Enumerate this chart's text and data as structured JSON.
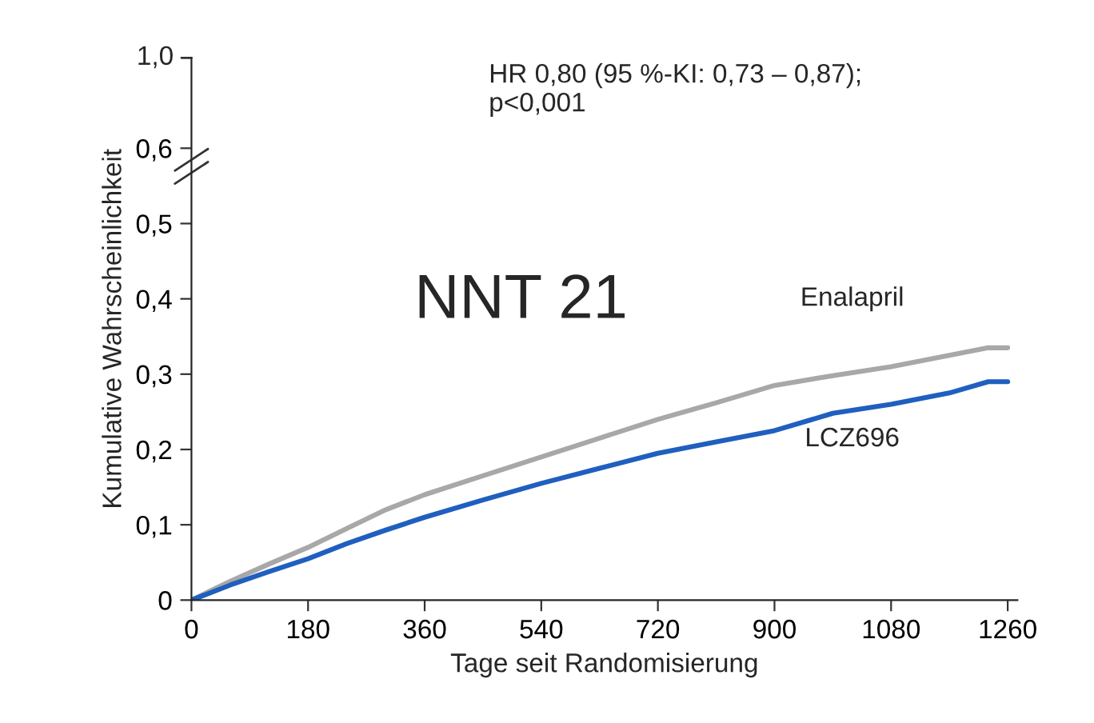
{
  "chart_data": {
    "type": "line",
    "xlabel": "Tage seit Randomisierung",
    "ylabel": "Kumulative Wahrscheinlichkeit",
    "x": [
      0,
      60,
      120,
      180,
      240,
      300,
      360,
      450,
      540,
      630,
      720,
      810,
      900,
      990,
      1080,
      1170,
      1230,
      1260
    ],
    "series": [
      {
        "name": "Enalapril",
        "color": "#a8a8a8",
        "values": [
          0,
          0.025,
          0.048,
          0.07,
          0.095,
          0.12,
          0.14,
          0.165,
          0.19,
          0.215,
          0.24,
          0.262,
          0.285,
          0.298,
          0.31,
          0.325,
          0.335,
          0.335
        ]
      },
      {
        "name": "LCZ696",
        "color": "#1f5fbf",
        "values": [
          0,
          0.02,
          0.038,
          0.055,
          0.075,
          0.093,
          0.11,
          0.133,
          0.155,
          0.175,
          0.195,
          0.21,
          0.225,
          0.248,
          0.26,
          0.275,
          0.29,
          0.29
        ]
      }
    ],
    "xlim": [
      0,
      1275
    ],
    "xticks": [
      0,
      180,
      360,
      540,
      720,
      900,
      1080,
      1260
    ],
    "ylim": [
      0,
      0.72
    ],
    "yticks": [
      {
        "value": 0,
        "label": "0"
      },
      {
        "value": 0.1,
        "label": "0,1"
      },
      {
        "value": 0.2,
        "label": "0,2"
      },
      {
        "value": 0.3,
        "label": "0,3"
      },
      {
        "value": 0.4,
        "label": "0,4"
      },
      {
        "value": 0.5,
        "label": "0,5"
      },
      {
        "value": 0.6,
        "label": "0,6"
      }
    ],
    "annotations": [
      "HR 0,80 (95 %-KI: 0,73 – 0,87);\np<0,001",
      "NNT 21",
      "1,0"
    ],
    "grid": false,
    "legend": false,
    "marker": "none",
    "line_style": "solid"
  }
}
